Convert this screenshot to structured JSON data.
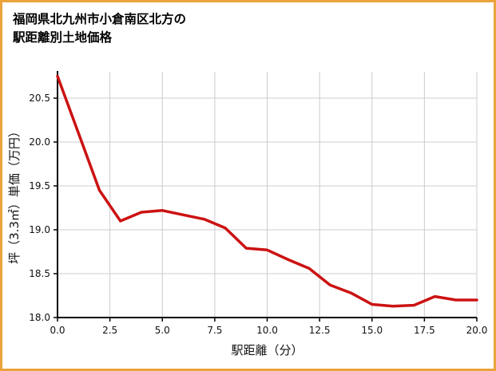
{
  "page": {
    "title_line1": "福岡県北九州市小倉南区北方の",
    "title_line2": "駅距離別土地価格"
  },
  "colors": {
    "border": "#e9a43c",
    "line": "#cc1212",
    "grid": "#cccccc",
    "axis": "#000000",
    "tick_text": "#111111"
  },
  "chart_data": {
    "type": "line",
    "title": "福岡県北九州市小倉南区北方の駅距離別土地価格",
    "xlabel": "駅距離（分）",
    "ylabel": "坪（3.3㎡）単価（万円）",
    "x": [
      0,
      1,
      2,
      3,
      4,
      5,
      6,
      7,
      8,
      9,
      10,
      11,
      12,
      13,
      14,
      15,
      16,
      17,
      18,
      19,
      20
    ],
    "values": [
      20.75,
      20.1,
      19.45,
      19.1,
      19.2,
      19.22,
      19.17,
      19.12,
      19.02,
      18.79,
      18.77,
      18.66,
      18.56,
      18.37,
      18.28,
      18.15,
      18.13,
      18.14,
      18.24,
      18.2,
      18.2
    ],
    "xlim": [
      0,
      20
    ],
    "ylim": [
      18.0,
      20.8
    ],
    "xticks": [
      0,
      2.5,
      5,
      7.5,
      10,
      12.5,
      15,
      17.5,
      20
    ],
    "yticks": [
      18.0,
      18.5,
      19.0,
      19.5,
      20.0,
      20.5
    ],
    "grid": true,
    "legend_position": "none",
    "series_name": "坪単価",
    "line_color": "#cc1212"
  }
}
